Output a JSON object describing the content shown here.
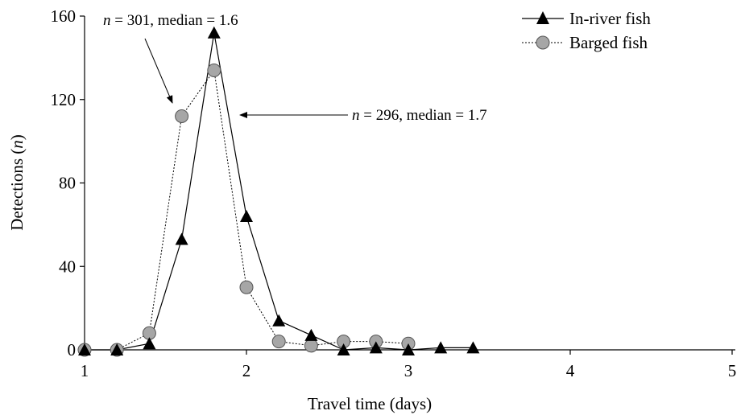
{
  "chart_data": {
    "type": "line",
    "title": "",
    "xlabel": "Travel time (days)",
    "ylabel_parts": [
      "Detections (",
      "n",
      ")"
    ],
    "xlim": [
      1,
      5
    ],
    "ylim": [
      0,
      160
    ],
    "xticks": [
      "1",
      "2",
      "3",
      "4",
      "5"
    ],
    "yticks": [
      "0",
      "40",
      "80",
      "120",
      "160"
    ],
    "grid": false,
    "legend_position": "top-right",
    "series": [
      {
        "name": "In-river fish",
        "marker": "triangle",
        "line": "solid",
        "color": "#000000",
        "x": [
          1.0,
          1.2,
          1.4,
          1.6,
          1.8,
          2.0,
          2.2,
          2.4,
          2.6,
          2.8,
          3.0,
          3.2,
          3.4
        ],
        "y": [
          0,
          0,
          3,
          53,
          152,
          64,
          14,
          7,
          0,
          1,
          0,
          1,
          1
        ]
      },
      {
        "name": "Barged fish",
        "marker": "circle",
        "line": "dotted",
        "color": "#808080",
        "x": [
          1.0,
          1.2,
          1.4,
          1.6,
          1.8,
          2.0,
          2.2,
          2.4,
          2.6,
          2.8,
          3.0
        ],
        "y": [
          0,
          0,
          8,
          112,
          134,
          30,
          4,
          2,
          4,
          4,
          3
        ]
      }
    ],
    "annotations": [
      {
        "italic": "n",
        "text": " = 301, median = 1.6"
      },
      {
        "italic": "n",
        "text": " = 296, median = 1.7"
      }
    ]
  }
}
